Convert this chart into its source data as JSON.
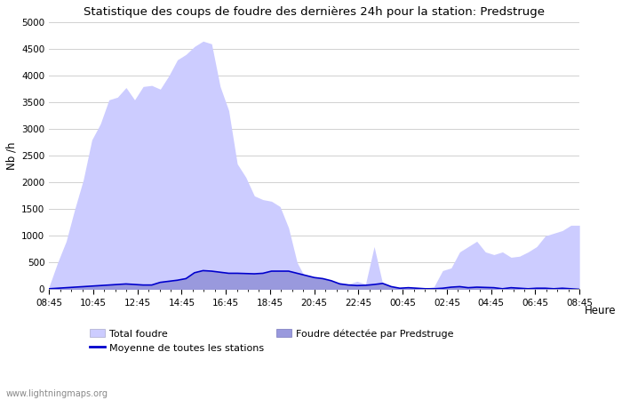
{
  "title": "Statistique des coups de foudre des dernières 24h pour la station: Predstruge",
  "xlabel": "Heure",
  "ylabel": "Nb /h",
  "watermark": "www.lightningmaps.org",
  "x_ticks": [
    "08:45",
    "10:45",
    "12:45",
    "14:45",
    "16:45",
    "18:45",
    "20:45",
    "22:45",
    "00:45",
    "02:45",
    "04:45",
    "06:45",
    "08:45"
  ],
  "ylim": [
    0,
    5000
  ],
  "yticks": [
    0,
    500,
    1000,
    1500,
    2000,
    2500,
    3000,
    3500,
    4000,
    4500,
    5000
  ],
  "background_color": "#ffffff",
  "plot_bg_color": "#ffffff",
  "grid_color": "#d0d0d0",
  "total_foudre_color": "#ccccff",
  "predstruge_color": "#9999dd",
  "moyenne_color": "#0000cc",
  "legend_total": "Total foudre",
  "legend_moyenne": "Moyenne de toutes les stations",
  "legend_predstruge": "Foudre détectée par Predstruge",
  "total_foudre": [
    50,
    500,
    900,
    1500,
    2050,
    2800,
    3100,
    3550,
    3600,
    3780,
    3550,
    3800,
    3820,
    3750,
    4000,
    4300,
    4400,
    4550,
    4650,
    4600,
    3800,
    3350,
    2350,
    2100,
    1750,
    1680,
    1650,
    1550,
    1150,
    500,
    200,
    100,
    100,
    100,
    130,
    100,
    150,
    100,
    800,
    100,
    50,
    20,
    30,
    20,
    20,
    50,
    350,
    400,
    700,
    800,
    900,
    700,
    650,
    700,
    600,
    620,
    700,
    800,
    1000,
    1050,
    1100,
    1200,
    1200
  ],
  "predstruge": [
    10,
    20,
    30,
    40,
    50,
    60,
    70,
    80,
    90,
    100,
    90,
    80,
    80,
    130,
    150,
    170,
    200,
    310,
    350,
    340,
    320,
    300,
    300,
    295,
    290,
    300,
    340,
    340,
    340,
    300,
    260,
    220,
    200,
    160,
    100,
    80,
    70,
    75,
    90,
    110,
    50,
    20,
    30,
    20,
    10,
    10,
    20,
    40,
    50,
    30,
    40,
    35,
    30,
    10,
    30,
    20,
    10,
    20,
    20,
    10,
    20,
    10,
    0
  ],
  "moyenne": [
    10,
    20,
    30,
    40,
    50,
    60,
    70,
    80,
    90,
    100,
    90,
    80,
    80,
    130,
    150,
    170,
    200,
    310,
    350,
    340,
    320,
    300,
    300,
    295,
    290,
    300,
    340,
    340,
    340,
    300,
    260,
    220,
    200,
    160,
    100,
    80,
    70,
    75,
    90,
    110,
    50,
    20,
    30,
    20,
    10,
    10,
    20,
    40,
    50,
    30,
    40,
    35,
    30,
    10,
    30,
    20,
    10,
    20,
    20,
    10,
    20,
    10,
    0
  ]
}
